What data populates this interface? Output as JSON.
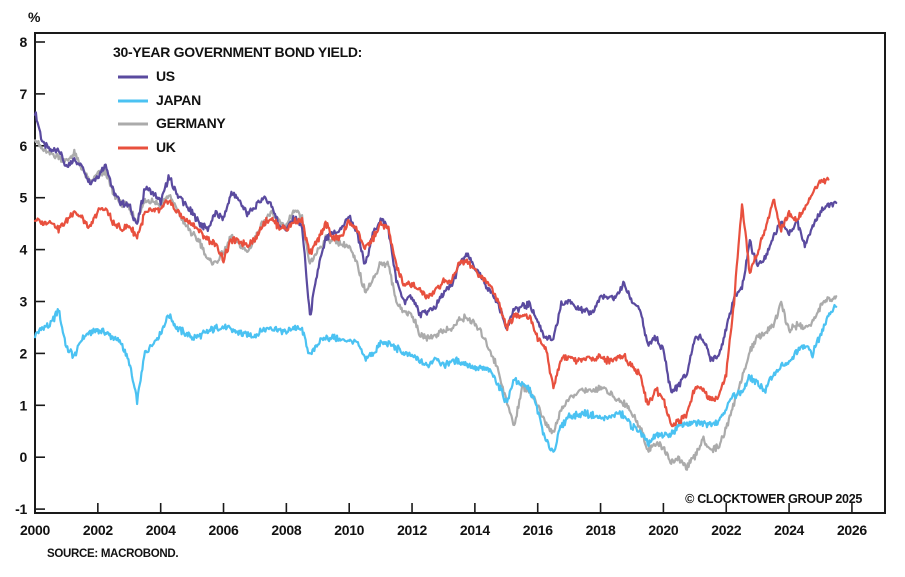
{
  "page": {
    "percent_label": "%",
    "source_text": "SOURCE: MACROBOND.",
    "copyright_text": "© CLOCKTOWER GROUP 2025"
  },
  "legend": {
    "title": "30-YEAR GOVERNMENT BOND YIELD:"
  },
  "colors": {
    "us": "#5A4A9F",
    "japan": "#4BC2F2",
    "germany": "#ABABAB",
    "uk": "#E8503E",
    "axis": "#1A1A1A"
  },
  "chart_data": {
    "type": "line",
    "title": "30-YEAR GOVERNMENT BOND YIELD:",
    "unit": "%",
    "source": "SOURCE: MACROBOND.",
    "annotation": "© CLOCKTOWER GROUP 2025",
    "grid": false,
    "legend_position": "top-left-inside",
    "x_start": 2000.0,
    "x_step_years": 0.25,
    "x_end": 2025.5,
    "x_axis": {
      "ticks": [
        2000,
        2002,
        2004,
        2006,
        2008,
        2010,
        2012,
        2014,
        2016,
        2018,
        2020,
        2022,
        2024,
        2026
      ],
      "range": [
        2000,
        2027.1
      ]
    },
    "y_axis": {
      "label": "%",
      "ticks": [
        -1,
        0,
        1,
        2,
        3,
        4,
        5,
        6,
        7,
        8
      ],
      "range": [
        -1.2,
        8.2
      ]
    },
    "series": [
      {
        "name": "US",
        "color": "#5A4A9F",
        "values": [
          6.65,
          6.05,
          5.9,
          5.95,
          5.55,
          5.75,
          5.6,
          5.3,
          5.4,
          5.65,
          5.1,
          4.9,
          4.85,
          4.45,
          5.2,
          5.1,
          4.9,
          5.4,
          5.1,
          4.9,
          4.7,
          4.5,
          4.4,
          4.7,
          4.6,
          5.1,
          4.95,
          4.7,
          4.8,
          5.0,
          4.9,
          4.5,
          4.4,
          4.6,
          4.45,
          2.7,
          3.6,
          4.2,
          4.3,
          4.4,
          4.65,
          4.3,
          3.7,
          4.3,
          4.6,
          4.4,
          3.4,
          3.0,
          3.1,
          2.75,
          2.8,
          2.9,
          3.15,
          3.3,
          3.7,
          3.9,
          3.65,
          3.4,
          3.2,
          2.95,
          2.5,
          2.85,
          2.9,
          2.95,
          2.6,
          2.3,
          2.25,
          2.95,
          3.0,
          2.9,
          2.8,
          2.8,
          3.1,
          3.05,
          3.1,
          3.35,
          3.0,
          2.85,
          2.15,
          2.3,
          2.05,
          1.25,
          1.4,
          1.6,
          2.3,
          2.3,
          1.9,
          1.95,
          2.45,
          3.1,
          3.25,
          4.15,
          3.7,
          3.85,
          4.25,
          4.55,
          4.3,
          4.55,
          4.1,
          4.45,
          4.75,
          4.85,
          4.9
        ]
      },
      {
        "name": "JAPAN",
        "color": "#4BC2F2",
        "values": [
          2.35,
          2.5,
          2.55,
          2.85,
          2.1,
          1.95,
          2.3,
          2.4,
          2.45,
          2.4,
          2.3,
          2.2,
          1.8,
          1.1,
          2.0,
          2.2,
          2.4,
          2.75,
          2.5,
          2.4,
          2.3,
          2.35,
          2.4,
          2.5,
          2.5,
          2.45,
          2.4,
          2.35,
          2.35,
          2.45,
          2.5,
          2.45,
          2.4,
          2.5,
          2.45,
          1.95,
          2.2,
          2.3,
          2.3,
          2.25,
          2.25,
          2.2,
          1.9,
          2.0,
          2.2,
          2.2,
          2.1,
          2.0,
          1.95,
          1.85,
          1.75,
          1.95,
          1.75,
          1.85,
          1.85,
          1.8,
          1.7,
          1.7,
          1.65,
          1.4,
          1.05,
          1.5,
          1.4,
          1.3,
          0.9,
          0.3,
          0.1,
          0.6,
          0.8,
          0.8,
          0.85,
          0.8,
          0.75,
          0.75,
          0.85,
          0.8,
          0.6,
          0.5,
          0.25,
          0.4,
          0.42,
          0.45,
          0.6,
          0.65,
          0.65,
          0.65,
          0.65,
          0.7,
          0.95,
          1.2,
          1.25,
          1.55,
          1.4,
          1.3,
          1.6,
          1.75,
          1.8,
          2.05,
          2.15,
          2.0,
          2.35,
          2.75,
          2.9
        ]
      },
      {
        "name": "GERMANY",
        "color": "#ABABAB",
        "values": [
          6.15,
          5.9,
          5.85,
          5.8,
          5.7,
          5.85,
          5.55,
          5.3,
          5.45,
          5.5,
          5.05,
          4.9,
          4.8,
          4.55,
          4.95,
          4.95,
          4.85,
          5.05,
          4.8,
          4.5,
          4.3,
          4.15,
          3.8,
          3.75,
          3.95,
          4.25,
          4.1,
          3.95,
          4.2,
          4.55,
          4.7,
          4.55,
          4.45,
          4.75,
          4.6,
          3.7,
          4.0,
          4.2,
          4.2,
          4.1,
          4.05,
          3.7,
          3.2,
          3.4,
          3.75,
          3.7,
          3.0,
          2.8,
          2.75,
          2.35,
          2.3,
          2.35,
          2.45,
          2.45,
          2.65,
          2.7,
          2.55,
          2.35,
          2.05,
          1.65,
          1.1,
          0.6,
          1.35,
          1.3,
          1.0,
          0.65,
          0.45,
          0.95,
          1.1,
          1.25,
          1.3,
          1.25,
          1.35,
          1.25,
          1.1,
          1.05,
          0.85,
          0.6,
          0.15,
          0.25,
          0.2,
          -0.1,
          -0.05,
          -0.2,
          0.0,
          0.35,
          0.15,
          0.2,
          0.55,
          1.05,
          1.5,
          2.05,
          2.3,
          2.4,
          2.55,
          2.95,
          2.45,
          2.55,
          2.5,
          2.6,
          2.9,
          3.05,
          3.1
        ]
      },
      {
        "name": "UK",
        "color": "#E8503E",
        "values": [
          4.6,
          4.5,
          4.55,
          4.4,
          4.55,
          4.75,
          4.6,
          4.4,
          4.75,
          4.8,
          4.5,
          4.4,
          4.45,
          4.25,
          4.7,
          4.75,
          4.75,
          4.95,
          4.75,
          4.6,
          4.5,
          4.35,
          4.2,
          4.1,
          3.8,
          4.2,
          4.15,
          4.1,
          4.2,
          4.5,
          4.6,
          4.45,
          4.4,
          4.55,
          4.55,
          3.9,
          4.2,
          4.5,
          4.2,
          4.25,
          4.55,
          4.4,
          4.0,
          4.2,
          4.5,
          4.4,
          3.7,
          3.3,
          3.35,
          3.2,
          3.1,
          3.2,
          3.4,
          3.4,
          3.75,
          3.8,
          3.6,
          3.45,
          3.3,
          3.0,
          2.5,
          2.7,
          2.75,
          2.7,
          2.3,
          2.1,
          1.35,
          1.9,
          1.95,
          1.85,
          1.9,
          1.9,
          1.95,
          1.85,
          1.9,
          1.95,
          1.75,
          1.6,
          1.0,
          1.3,
          1.15,
          0.6,
          0.7,
          0.85,
          1.35,
          1.3,
          1.1,
          1.15,
          1.6,
          3.0,
          4.85,
          3.55,
          3.95,
          4.4,
          4.95,
          4.4,
          4.7,
          4.6,
          4.8,
          5.1,
          5.3,
          5.35
        ]
      }
    ]
  }
}
